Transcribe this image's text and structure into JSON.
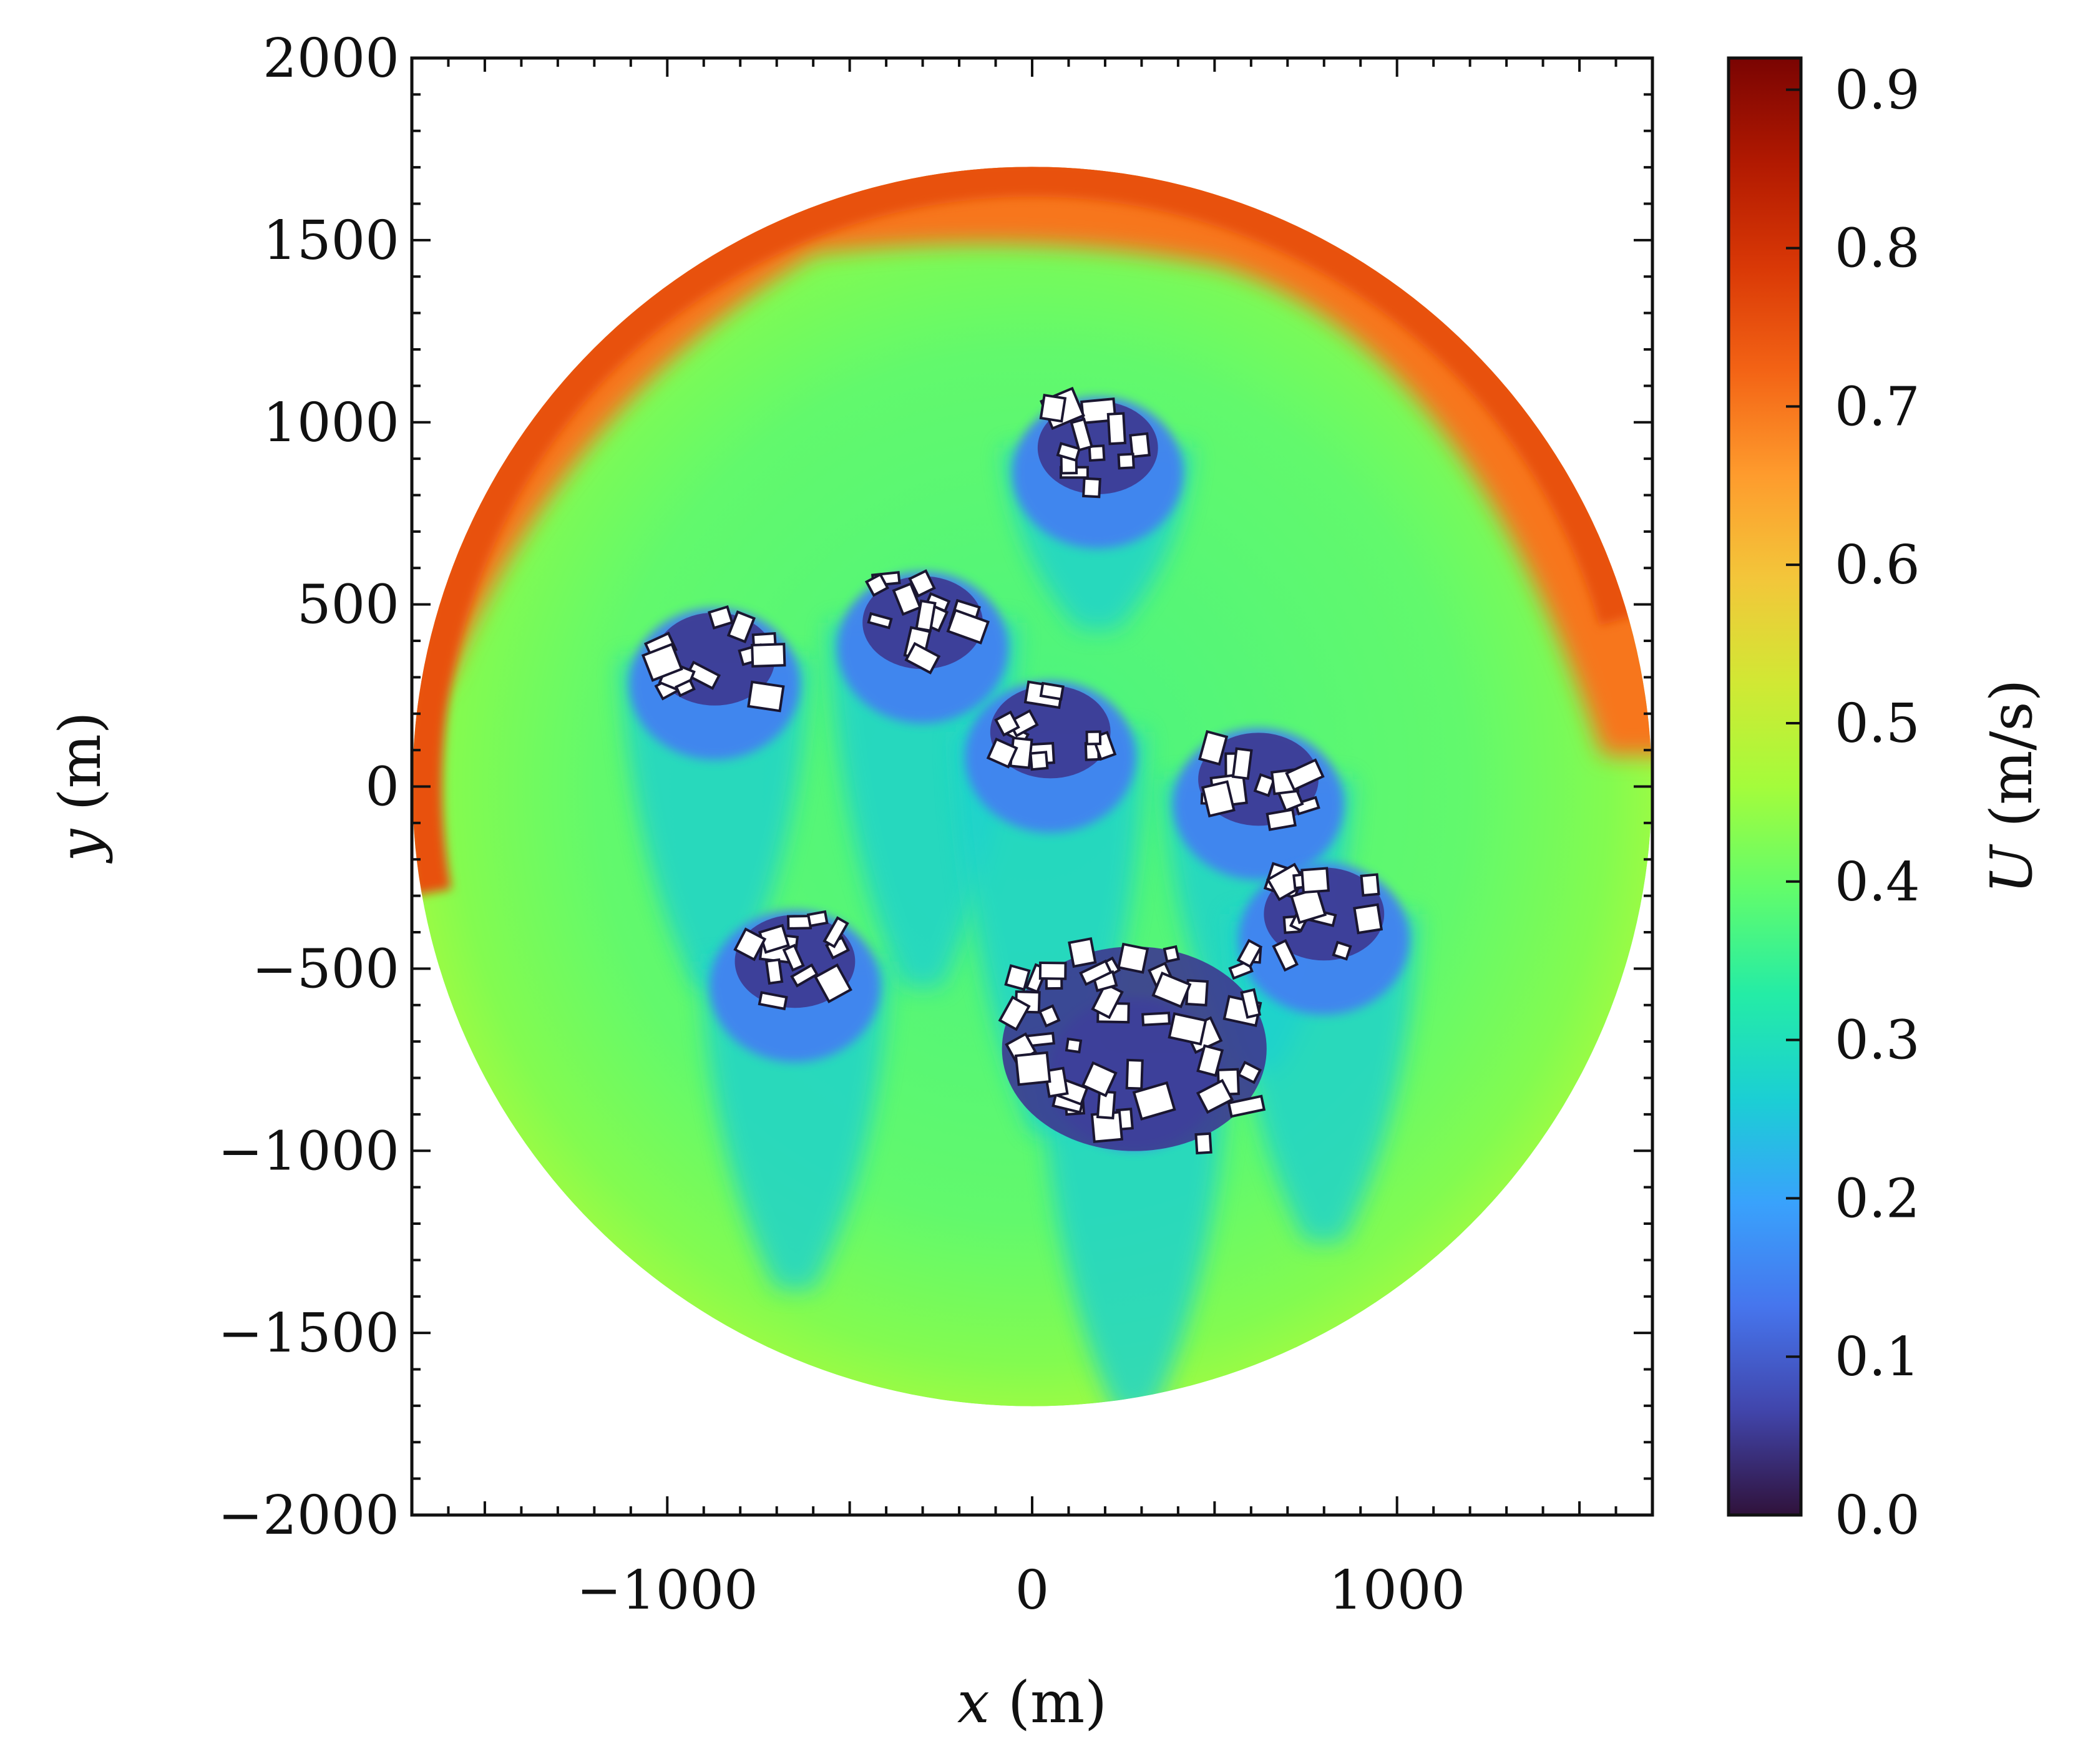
{
  "chart_data": {
    "type": "heatmap",
    "title": "",
    "xlabel": "x (m)",
    "ylabel": "y (m)",
    "xlabel_var": "x",
    "xlabel_unit": "(m)",
    "ylabel_var": "y",
    "ylabel_unit": "(m)",
    "xlim": [
      -1700,
      1700
    ],
    "ylim": [
      -2000,
      2000
    ],
    "x_ticks": [
      -1000,
      0,
      1000
    ],
    "x_tick_labels": [
      "−1000",
      "0",
      "1000"
    ],
    "y_ticks": [
      -2000,
      -1500,
      -1000,
      -500,
      0,
      500,
      1000,
      1500,
      2000
    ],
    "y_tick_labels": [
      "−2000",
      "−1500",
      "−1000",
      "−500",
      "0",
      "500",
      "1000",
      "1500",
      "2000"
    ],
    "domain_shape": "circle",
    "domain_radius": 1700,
    "colorbar": {
      "label": "U (m/s)",
      "label_var": "U",
      "label_unit": "(m/s)",
      "range": [
        0.0,
        0.92
      ],
      "ticks": [
        0.0,
        0.1,
        0.2,
        0.3,
        0.4,
        0.5,
        0.6,
        0.7,
        0.8,
        0.9
      ],
      "tick_labels": [
        "0.0",
        "0.1",
        "0.2",
        "0.3",
        "0.4",
        "0.5",
        "0.6",
        "0.7",
        "0.8",
        "0.9"
      ],
      "colormap": "turbo",
      "colormap_stops": [
        "#30123b",
        "#4145ab",
        "#4675ed",
        "#39a2fc",
        "#1bcfd4",
        "#24eca6",
        "#61fc6c",
        "#a4fc3b",
        "#d1e834",
        "#f3c63a",
        "#fe9b2d",
        "#f36315",
        "#d93806",
        "#b11901",
        "#7a0402"
      ]
    },
    "field_description_values": {
      "background_speed": 0.4,
      "edge_speed_north": 0.75,
      "wake_speed": 0.15
    },
    "building_clusters": [
      {
        "x": 180,
        "y": 930,
        "value": 0.05
      },
      {
        "x": -870,
        "y": 350,
        "value": 0.05
      },
      {
        "x": -300,
        "y": 450,
        "value": 0.05
      },
      {
        "x": 50,
        "y": 150,
        "value": 0.05
      },
      {
        "x": 620,
        "y": 20,
        "value": 0.05
      },
      {
        "x": -650,
        "y": -480,
        "value": 0.05
      },
      {
        "x": 280,
        "y": -720,
        "value": 0.05
      },
      {
        "x": 800,
        "y": -350,
        "value": 0.05
      }
    ]
  }
}
